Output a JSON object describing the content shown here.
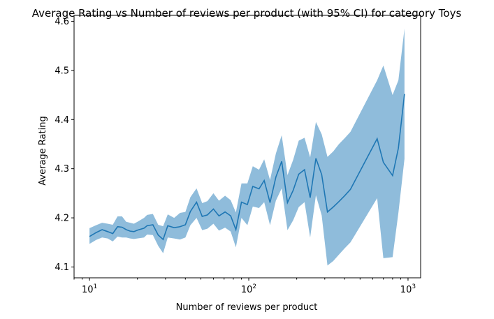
{
  "chart_data": {
    "type": "line",
    "title": "Average Rating vs Number of reviews per product (with 95% CI) for category Toys",
    "xlabel": "Number of reviews per product",
    "ylabel": "Average Rating",
    "xscale": "log",
    "xlim": [
      8,
      1200
    ],
    "ylim": [
      4.078,
      4.612
    ],
    "xticks": [
      {
        "value": 10,
        "mantissa": "10",
        "exp": "1"
      },
      {
        "value": 100,
        "mantissa": "10",
        "exp": "2"
      },
      {
        "value": 1000,
        "mantissa": "10",
        "exp": "3"
      }
    ],
    "yticks": [
      {
        "value": 4.1,
        "label": "4.1"
      },
      {
        "value": 4.2,
        "label": "4.2"
      },
      {
        "value": 4.3,
        "label": "4.3"
      },
      {
        "value": 4.4,
        "label": "4.4"
      },
      {
        "value": 4.5,
        "label": "4.5"
      },
      {
        "value": 4.6,
        "label": "4.6"
      }
    ],
    "grid": false,
    "line_color": "#1f77b4",
    "band_color": "#8fbcdb",
    "series": [
      {
        "x": [
          10,
          11,
          12,
          13,
          14,
          15,
          16,
          17,
          18,
          19,
          20,
          22,
          23,
          25,
          27,
          29,
          31,
          34,
          37,
          40,
          43,
          47,
          51,
          55,
          60,
          65,
          71,
          77,
          83,
          90,
          98,
          106,
          116,
          125,
          136,
          148,
          161,
          175,
          190,
          206,
          224,
          243,
          264,
          287,
          312,
          339,
          368,
          400,
          435,
          640,
          700,
          800,
          870,
          950
        ],
        "y": [
          4.162,
          4.17,
          4.176,
          4.172,
          4.168,
          4.182,
          4.181,
          4.176,
          4.173,
          4.172,
          4.175,
          4.179,
          4.184,
          4.186,
          4.165,
          4.156,
          4.184,
          4.18,
          4.182,
          4.186,
          4.213,
          4.232,
          4.203,
          4.206,
          4.218,
          4.204,
          4.212,
          4.204,
          4.176,
          4.232,
          4.227,
          4.264,
          4.259,
          4.276,
          4.231,
          4.283,
          4.315,
          4.231,
          4.256,
          4.289,
          4.298,
          4.241,
          4.321,
          4.288,
          4.212,
          4.222,
          4.233,
          4.245,
          4.258,
          4.361,
          4.313,
          4.286,
          4.342,
          4.452
        ],
        "lower": [
          4.147,
          4.155,
          4.16,
          4.158,
          4.152,
          4.162,
          4.16,
          4.16,
          4.158,
          4.157,
          4.158,
          4.16,
          4.166,
          4.165,
          4.143,
          4.128,
          4.16,
          4.158,
          4.156,
          4.16,
          4.185,
          4.2,
          4.175,
          4.178,
          4.188,
          4.174,
          4.18,
          4.172,
          4.14,
          4.2,
          4.185,
          4.223,
          4.22,
          4.232,
          4.185,
          4.235,
          4.26,
          4.175,
          4.195,
          4.222,
          4.232,
          4.16,
          4.246,
          4.205,
          4.103,
          4.112,
          4.125,
          4.138,
          4.15,
          4.24,
          4.118,
          4.12,
          4.21,
          4.32
        ],
        "upper": [
          4.179,
          4.185,
          4.19,
          4.188,
          4.186,
          4.203,
          4.203,
          4.192,
          4.19,
          4.188,
          4.192,
          4.2,
          4.206,
          4.208,
          4.186,
          4.183,
          4.207,
          4.2,
          4.21,
          4.212,
          4.242,
          4.26,
          4.23,
          4.234,
          4.25,
          4.235,
          4.245,
          4.236,
          4.211,
          4.27,
          4.27,
          4.305,
          4.298,
          4.319,
          4.277,
          4.331,
          4.368,
          4.287,
          4.318,
          4.357,
          4.363,
          4.323,
          4.395,
          4.37,
          4.324,
          4.335,
          4.35,
          4.362,
          4.375,
          4.48,
          4.51,
          4.45,
          4.48,
          4.585
        ]
      }
    ]
  }
}
